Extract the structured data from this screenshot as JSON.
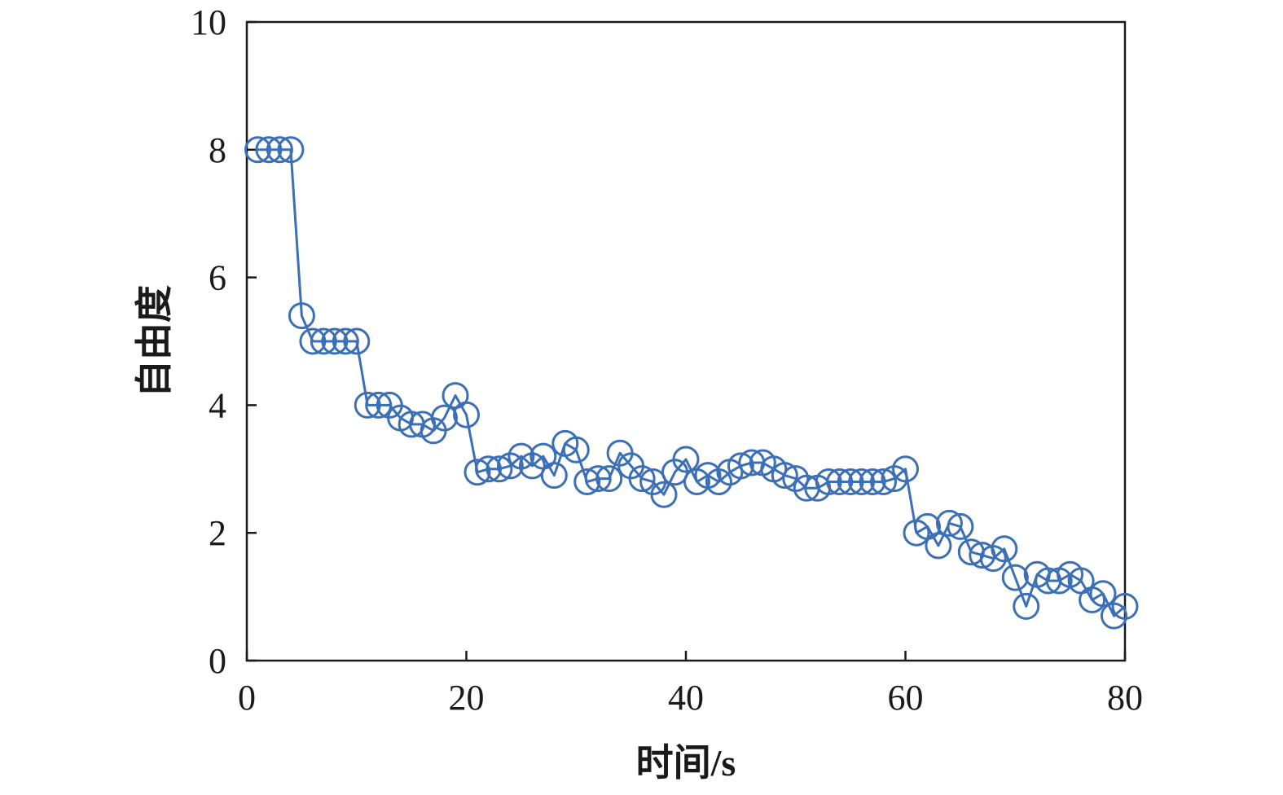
{
  "chart_data": {
    "type": "line",
    "title": "",
    "xlabel": "时间/s",
    "ylabel": "自由度",
    "xlim": [
      0,
      80
    ],
    "ylim": [
      0,
      10
    ],
    "xticks": [
      0,
      20,
      40,
      60,
      80
    ],
    "yticks": [
      0,
      2,
      4,
      6,
      8,
      10
    ],
    "grid": false,
    "legend": "none",
    "color": "#3b6fb6",
    "marker": "open-circle",
    "series": [
      {
        "x": [
          1,
          2,
          3,
          4,
          5,
          6,
          7,
          8,
          9,
          10,
          11,
          12,
          13,
          14,
          15,
          16,
          17,
          18,
          19,
          20,
          21,
          22,
          23,
          24,
          25,
          26,
          27,
          28,
          29,
          30,
          31,
          32,
          33,
          34,
          35,
          36,
          37,
          38,
          39,
          40,
          41,
          42,
          43,
          44,
          45,
          46,
          47,
          48,
          49,
          50,
          51,
          52,
          53,
          54,
          55,
          56,
          57,
          58,
          59,
          60,
          61,
          62,
          63,
          64,
          65,
          66,
          67,
          68,
          69,
          70,
          71,
          72,
          73,
          74,
          75,
          76,
          77,
          78,
          79,
          80
        ],
        "values": [
          8,
          8,
          8,
          8,
          5.4,
          5,
          5,
          5,
          5,
          5,
          4,
          4,
          4,
          3.8,
          3.7,
          3.7,
          3.6,
          3.8,
          4.15,
          3.85,
          2.95,
          3,
          3,
          3.05,
          3.2,
          3.05,
          3.2,
          2.9,
          3.4,
          3.3,
          2.8,
          2.85,
          2.85,
          3.25,
          3.05,
          2.85,
          2.8,
          2.6,
          2.95,
          3.15,
          2.8,
          2.9,
          2.8,
          2.95,
          3.05,
          3.1,
          3.1,
          3,
          2.9,
          2.85,
          2.7,
          2.7,
          2.8,
          2.8,
          2.8,
          2.8,
          2.8,
          2.8,
          2.85,
          3,
          2,
          2.1,
          1.8,
          2.15,
          2.1,
          1.7,
          1.65,
          1.6,
          1.75,
          1.3,
          0.85,
          1.35,
          1.25,
          1.25,
          1.35,
          1.25,
          0.95,
          1.05,
          0.7,
          0.85
        ]
      }
    ]
  }
}
